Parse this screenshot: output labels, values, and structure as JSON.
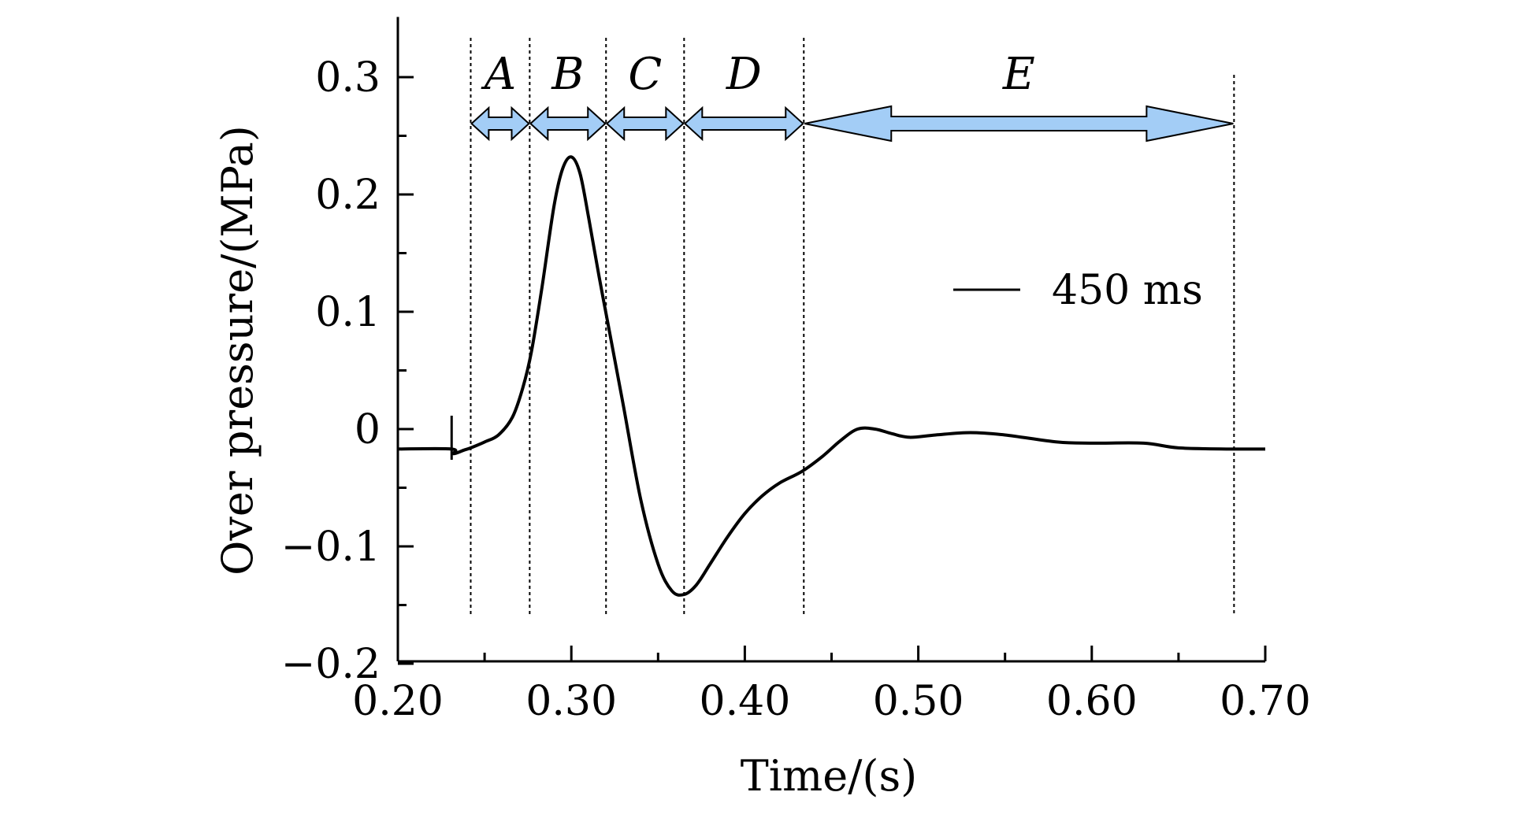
{
  "chart_data": {
    "type": "line",
    "xlabel": "Time/(s)",
    "ylabel": "Over pressure/(MPa)",
    "xlim": [
      0.2,
      0.7
    ],
    "ylim": [
      -0.2,
      0.35
    ],
    "x_ticks": [
      0.2,
      0.3,
      0.4,
      0.5,
      0.6,
      0.7
    ],
    "x_tick_labels": [
      "0.20",
      "0.30",
      "0.40",
      "0.50",
      "0.60",
      "0.70"
    ],
    "y_ticks": [
      -0.2,
      -0.1,
      0,
      0.1,
      0.2,
      0.3
    ],
    "y_tick_labels": [
      "−0.2",
      "−0.1",
      "0",
      "0.1",
      "0.2",
      "0.3"
    ],
    "grid": false,
    "legend_position": "right",
    "series": [
      {
        "name": "450 ms",
        "color": "#000000",
        "x": [
          0.2,
          0.231,
          0.232,
          0.238,
          0.242,
          0.25,
          0.258,
          0.266,
          0.272,
          0.277,
          0.283,
          0.29,
          0.295,
          0.3,
          0.305,
          0.31,
          0.316,
          0.322,
          0.33,
          0.34,
          0.35,
          0.358,
          0.365,
          0.372,
          0.38,
          0.39,
          0.4,
          0.41,
          0.42,
          0.433,
          0.445,
          0.455,
          0.465,
          0.475,
          0.485,
          0.495,
          0.51,
          0.53,
          0.55,
          0.58,
          0.6,
          0.63,
          0.65,
          0.68,
          0.7
        ],
        "y": [
          -0.017,
          -0.017,
          -0.021,
          -0.018,
          -0.016,
          -0.011,
          -0.005,
          0.01,
          0.035,
          0.066,
          0.12,
          0.19,
          0.222,
          0.232,
          0.218,
          0.18,
          0.13,
          0.083,
          0.02,
          -0.06,
          -0.115,
          -0.138,
          -0.141,
          -0.133,
          -0.115,
          -0.092,
          -0.072,
          -0.057,
          -0.046,
          -0.036,
          -0.023,
          -0.01,
          0.0,
          0.0,
          -0.004,
          -0.007,
          -0.005,
          -0.003,
          -0.005,
          -0.011,
          -0.012,
          -0.012,
          -0.016,
          -0.017,
          -0.017
        ]
      }
    ],
    "phases": [
      {
        "label": "A",
        "start": 0.242,
        "end": 0.276
      },
      {
        "label": "B",
        "start": 0.276,
        "end": 0.32
      },
      {
        "label": "C",
        "start": 0.32,
        "end": 0.365
      },
      {
        "label": "D",
        "start": 0.365,
        "end": 0.434
      },
      {
        "label": "E",
        "start": 0.434,
        "end": 0.682
      }
    ],
    "marker_x": 0.231,
    "arrow_color": "#a3cdf6"
  }
}
